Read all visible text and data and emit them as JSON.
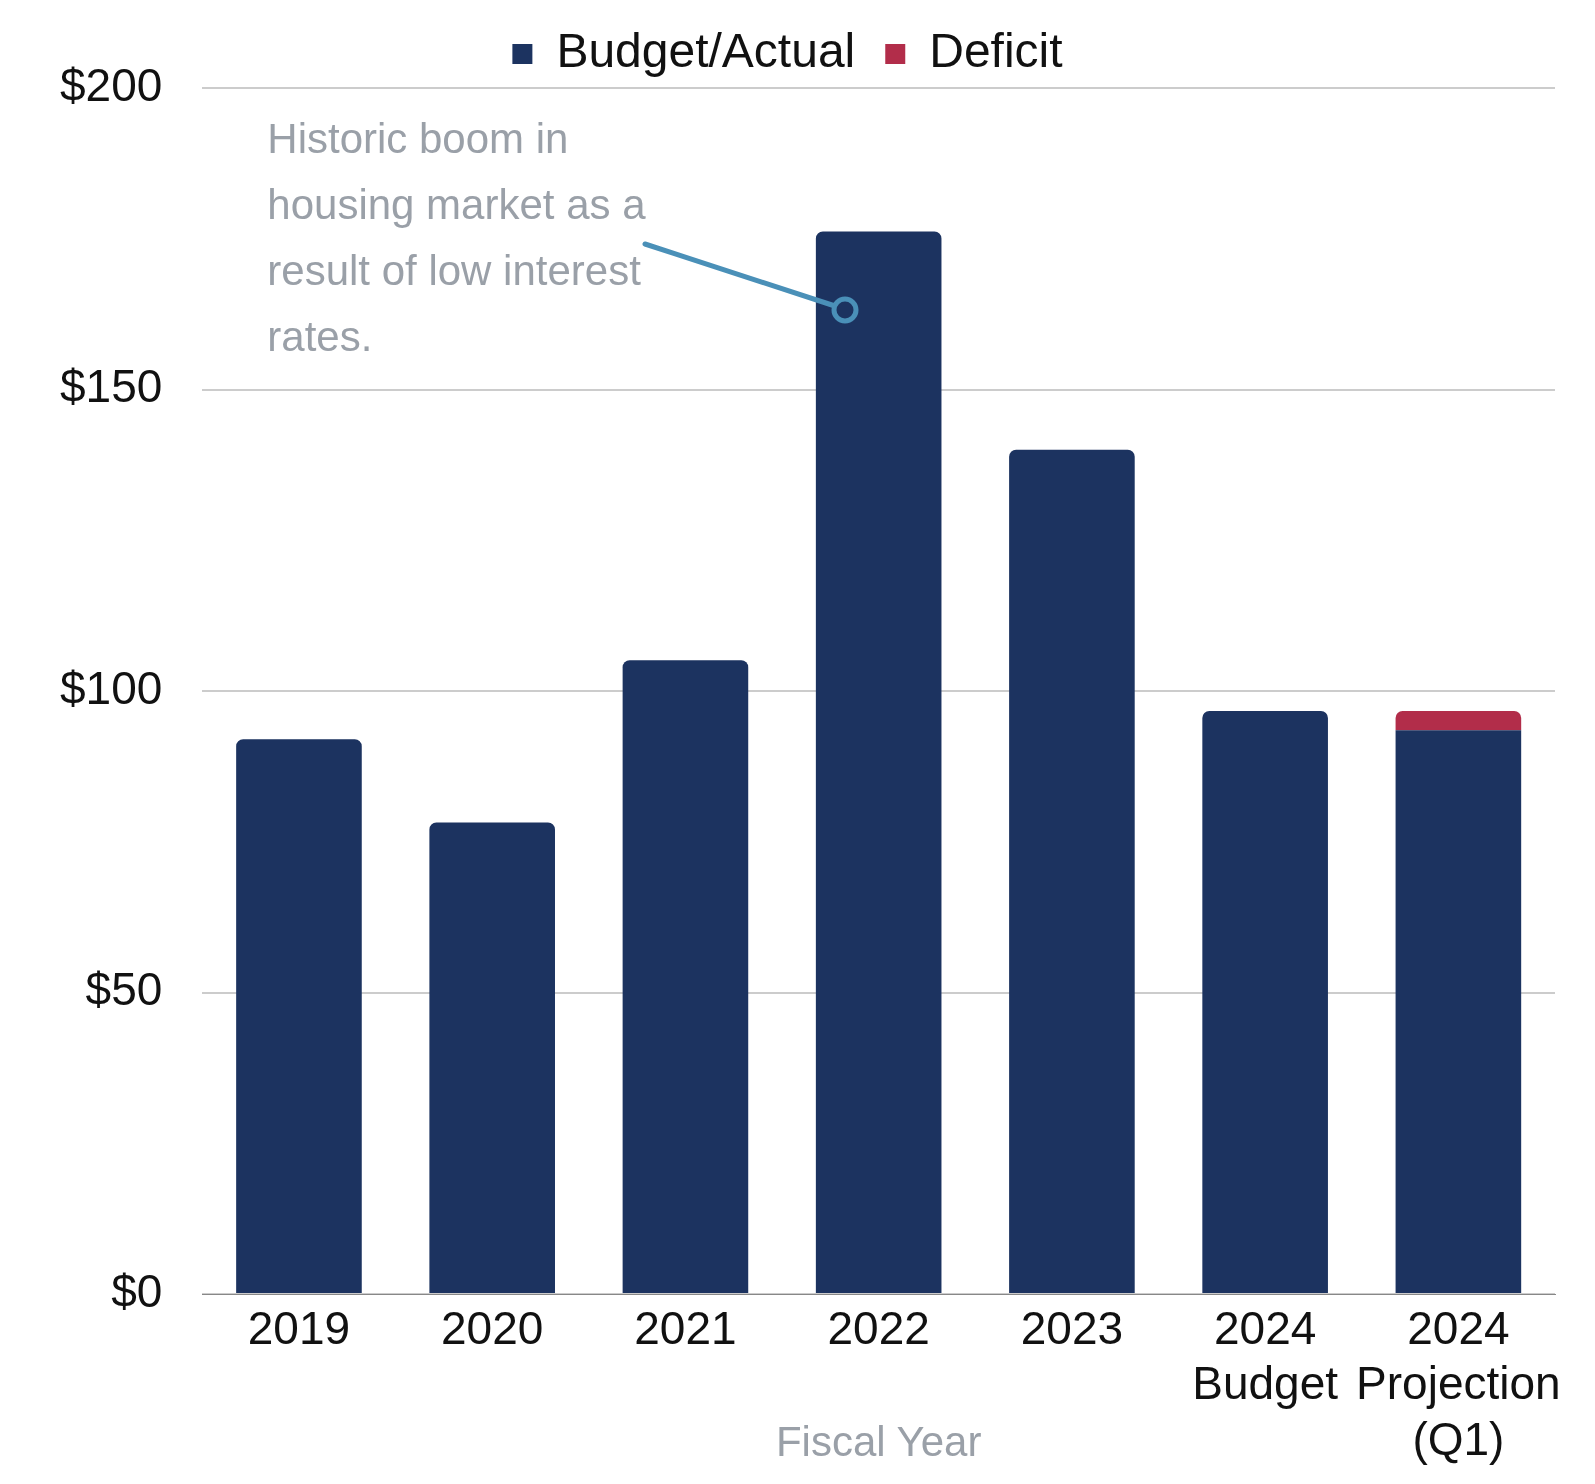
{
  "chart_data": {
    "type": "bar",
    "stacked": true,
    "xlabel": "Fiscal Year",
    "categories": [
      "2019",
      "2020",
      "2021",
      "2022",
      "2023",
      "2024\nBudget",
      "2024\nProjection\n(Q1)"
    ],
    "series": [
      {
        "name": "Budget/Actual",
        "color": "#1c3360",
        "values": [
          92,
          78.2,
          105.1,
          176.2,
          140,
          96.7,
          93.5
        ]
      },
      {
        "name": "Deficit",
        "color": "#b22d4a",
        "values": [
          null,
          null,
          null,
          null,
          null,
          null,
          3.2
        ]
      }
    ],
    "ylim": [
      0,
      200
    ],
    "yticks": [
      {
        "value": 0,
        "label": "$0"
      },
      {
        "value": 50,
        "label": "$50"
      },
      {
        "value": 100,
        "label": "$100"
      },
      {
        "value": 150,
        "label": "$150"
      },
      {
        "value": 200,
        "label": "$200"
      }
    ],
    "grid": "y",
    "legend": "top",
    "annotations": [
      "Historic boom in housing market as a result of low interest rates."
    ]
  }
}
